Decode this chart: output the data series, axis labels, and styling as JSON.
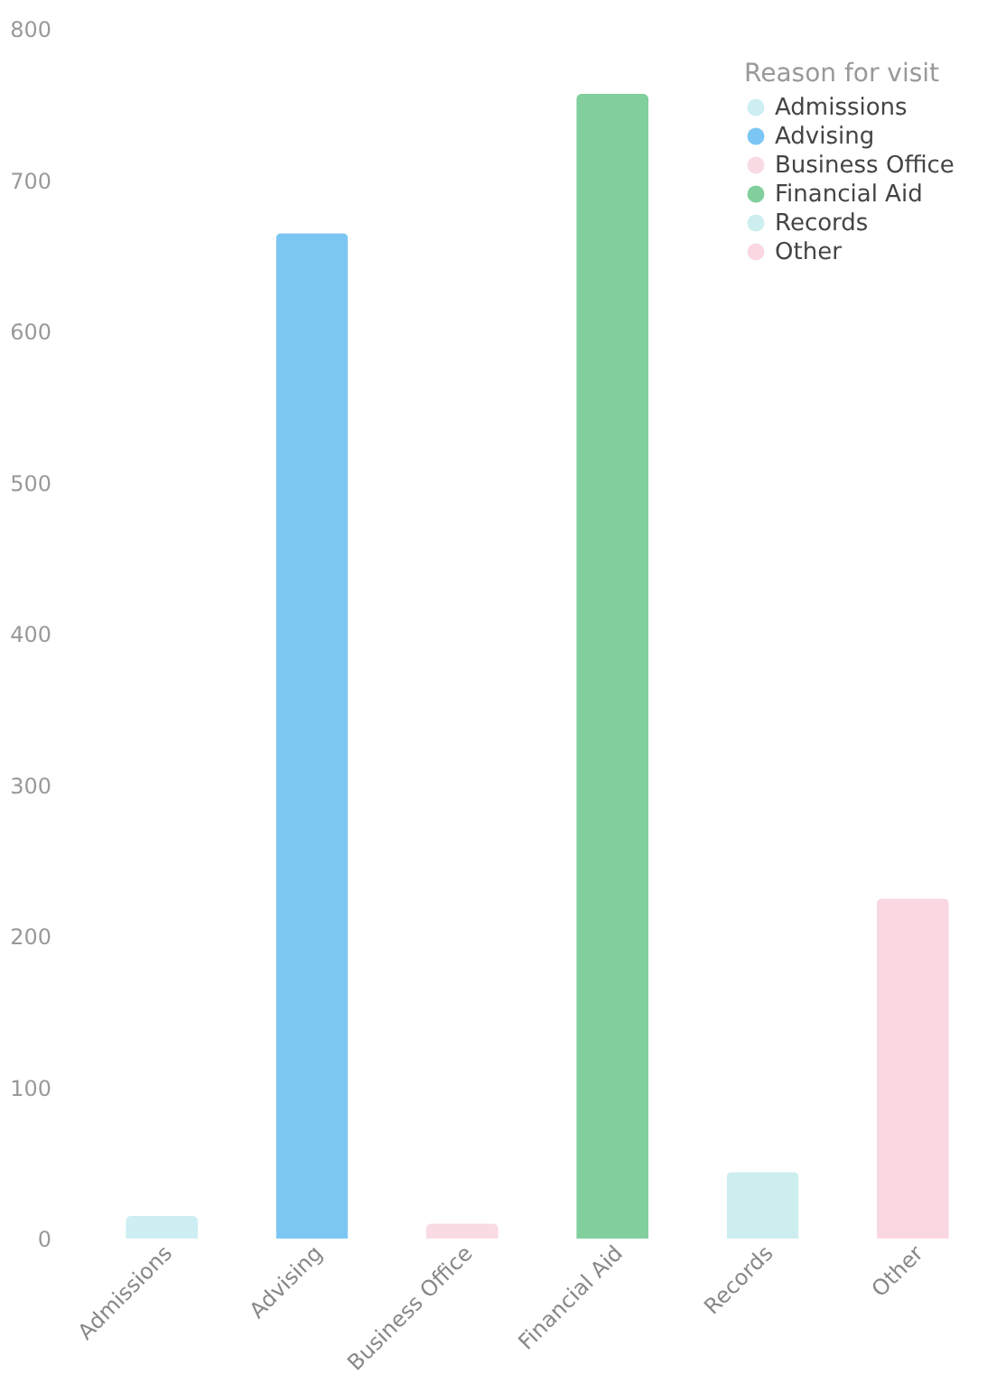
{
  "chart_data": {
    "type": "bar",
    "categories": [
      "Admissions",
      "Advising",
      "Business Office",
      "Financial Aid",
      "Records",
      "Other"
    ],
    "series": [
      {
        "name": "Admissions",
        "color": "#cdeef3",
        "values": [
          15,
          null,
          null,
          null,
          null,
          null
        ]
      },
      {
        "name": "Advising",
        "color": "#7cc6f4",
        "values": [
          null,
          665,
          null,
          null,
          null,
          null
        ]
      },
      {
        "name": "Business Office",
        "color": "#f9dbe3",
        "values": [
          null,
          null,
          10,
          null,
          null,
          null
        ]
      },
      {
        "name": "Financial Aid",
        "color": "#80cf9c",
        "values": [
          null,
          null,
          null,
          757,
          null,
          null
        ]
      },
      {
        "name": "Records",
        "color": "#cdeeee",
        "values": [
          null,
          null,
          null,
          null,
          44,
          null
        ]
      },
      {
        "name": "Other",
        "color": "#f9d8e2",
        "values": [
          null,
          null,
          null,
          null,
          null,
          225
        ]
      }
    ],
    "legend_title": "Reason for visit",
    "legend": "top right",
    "grid": false,
    "ylim": [
      0,
      800
    ],
    "yticks": [
      0,
      100,
      200,
      300,
      400,
      500,
      600,
      700,
      800
    ]
  }
}
